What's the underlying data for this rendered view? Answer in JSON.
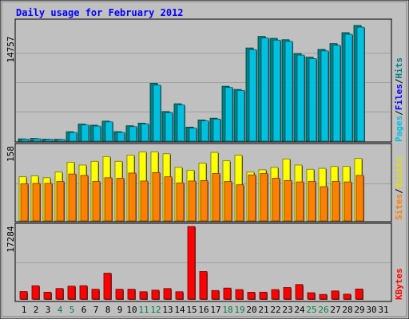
{
  "chart_data": [
    {
      "type": "bar",
      "title": "Daily usage for February 2012",
      "panel": "pages-files-hits",
      "categories": [
        "1",
        "2",
        "3",
        "4",
        "5",
        "6",
        "7",
        "8",
        "9",
        "10",
        "11",
        "12",
        "13",
        "14",
        "15",
        "16",
        "17",
        "18",
        "19",
        "20",
        "21",
        "22",
        "23",
        "24",
        "25",
        "26",
        "27",
        "28",
        "29",
        "30",
        "31"
      ],
      "ymax_label": "14757",
      "ylim": [
        0,
        14757
      ],
      "legend": [
        {
          "text": "Pages",
          "color": "#00c0e0"
        },
        {
          "text": "/",
          "color": "#000000"
        },
        {
          "text": "Files",
          "color": "#0000ff"
        },
        {
          "text": "/",
          "color": "#000000"
        },
        {
          "text": "Hits",
          "color": "#008080"
        }
      ],
      "series": [
        {
          "name": "Hits",
          "color": "#008080",
          "values": [
            290,
            340,
            260,
            240,
            1190,
            2150,
            2010,
            2520,
            1200,
            1940,
            2270,
            7280,
            3730,
            4710,
            1770,
            2670,
            2890,
            6910,
            6510,
            11730,
            13190,
            12940,
            12770,
            11020,
            10570,
            11550,
            12280,
            13660,
            14560,
            0,
            0
          ]
        },
        {
          "name": "Pages",
          "color": "#00c0e0",
          "values": [
            250,
            300,
            230,
            210,
            1090,
            2040,
            1900,
            2430,
            1100,
            1830,
            2180,
            7050,
            3580,
            4560,
            1650,
            2560,
            2780,
            6760,
            6380,
            11520,
            12980,
            12720,
            12560,
            10830,
            10390,
            11360,
            12070,
            13450,
            14350,
            0,
            0
          ]
        }
      ]
    },
    {
      "type": "bar",
      "panel": "visits-sites",
      "categories": [
        "1",
        "2",
        "3",
        "4",
        "5",
        "6",
        "7",
        "8",
        "9",
        "10",
        "11",
        "12",
        "13",
        "14",
        "15",
        "16",
        "17",
        "18",
        "19",
        "20",
        "21",
        "22",
        "23",
        "24",
        "25",
        "26",
        "27",
        "28",
        "29",
        "30",
        "31"
      ],
      "ymax_label": "158",
      "ylim": [
        0,
        158
      ],
      "legend": [
        {
          "text": "Sites",
          "color": "#ff8000"
        },
        {
          "text": "/",
          "color": "#000000"
        },
        {
          "text": "Visits",
          "color": "#e0e000"
        }
      ],
      "series": [
        {
          "name": "Visits",
          "color": "#ffff00",
          "values": [
            94,
            96,
            92,
            104,
            125,
            119,
            127,
            137,
            127,
            140,
            147,
            147,
            143,
            114,
            108,
            123,
            146,
            128,
            140,
            104,
            109,
            114,
            132,
            119,
            110,
            112,
            116,
            116,
            133,
            0,
            0
          ]
        },
        {
          "name": "Sites",
          "color": "#ff8000",
          "values": [
            79,
            80,
            80,
            84,
            100,
            97,
            84,
            92,
            91,
            102,
            85,
            103,
            94,
            81,
            85,
            86,
            101,
            84,
            77,
            98,
            101,
            91,
            86,
            83,
            84,
            73,
            84,
            83,
            97,
            0,
            0
          ]
        }
      ]
    },
    {
      "type": "bar",
      "panel": "kbytes",
      "categories": [
        "1",
        "2",
        "3",
        "4",
        "5",
        "6",
        "7",
        "8",
        "9",
        "10",
        "11",
        "12",
        "13",
        "14",
        "15",
        "16",
        "17",
        "18",
        "19",
        "20",
        "21",
        "22",
        "23",
        "24",
        "25",
        "26",
        "27",
        "28",
        "29",
        "30",
        "31"
      ],
      "ymax_label": "17284",
      "ylim": [
        0,
        17284
      ],
      "legend": [
        {
          "text": "KBytes",
          "color": "#ff0000"
        }
      ],
      "series": [
        {
          "name": "KBytes",
          "color": "#ff0000",
          "values": [
            1790,
            3170,
            1640,
            2520,
            3070,
            3180,
            2340,
            6170,
            2340,
            2340,
            1750,
            2120,
            2510,
            1750,
            17284,
            6560,
            2040,
            2620,
            2260,
            1620,
            1650,
            2260,
            2750,
            3460,
            1510,
            1100,
            1940,
            1170,
            2400,
            0,
            0
          ]
        }
      ]
    }
  ],
  "x_axis": {
    "labels": [
      "1",
      "2",
      "3",
      "4",
      "5",
      "6",
      "7",
      "8",
      "9",
      "10",
      "11",
      "12",
      "13",
      "14",
      "15",
      "16",
      "17",
      "18",
      "19",
      "20",
      "21",
      "22",
      "23",
      "24",
      "25",
      "26",
      "27",
      "28",
      "29",
      "30",
      "31"
    ],
    "weekend_days": [
      "4",
      "5",
      "11",
      "12",
      "18",
      "19",
      "25",
      "26"
    ],
    "weekday_color": "#000000",
    "weekend_color": "#008040"
  },
  "colors": {
    "background": "#c0c0c0",
    "plot_background": "#c0c0c0",
    "title": "#0000ff",
    "frame_dark": "#808080",
    "frame_light": "#ffffff"
  }
}
